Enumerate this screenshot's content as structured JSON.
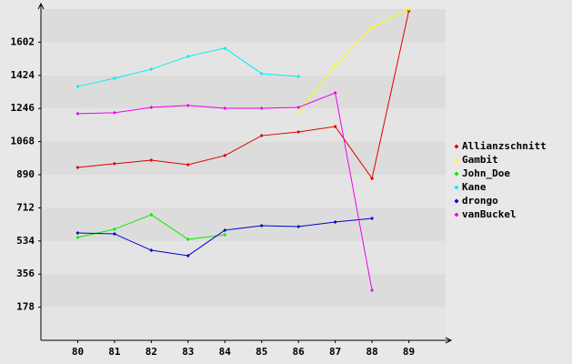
{
  "chart_data": {
    "type": "line",
    "categories": [
      "80",
      "81",
      "82",
      "83",
      "84",
      "85",
      "86",
      "87",
      "88",
      "89"
    ],
    "series": [
      {
        "name": "Allianzschnitt",
        "color": "#dd0000",
        "values": [
          929,
          949,
          968,
          944,
          993,
          1100,
          1120,
          1149,
          870,
          1770
        ]
      },
      {
        "name": "Gambit",
        "color": "#ffff00",
        "values": [
          null,
          null,
          null,
          null,
          null,
          null,
          1227,
          1477,
          1682,
          1780
        ]
      },
      {
        "name": "John_Doe",
        "color": "#00ee00",
        "values": [
          553,
          597,
          675,
          543,
          567,
          null,
          null,
          null,
          null,
          null
        ]
      },
      {
        "name": "Kane",
        "color": "#00eeee",
        "values": [
          1364,
          1408,
          1457,
          1526,
          1570,
          1433,
          1418,
          null,
          null,
          null
        ]
      },
      {
        "name": "drongo",
        "color": "#0000cc",
        "values": [
          577,
          572,
          484,
          455,
          592,
          616,
          611,
          636,
          655,
          null
        ]
      },
      {
        "name": "vanBuckel",
        "color": "#ee00ee",
        "values": [
          1218,
          1223,
          1252,
          1262,
          1247,
          1247,
          1252,
          1330,
          269,
          null
        ]
      }
    ],
    "ylim": [
      0,
      1780
    ],
    "yticks": [
      178,
      356,
      534,
      712,
      890,
      1068,
      1246,
      1424,
      1602
    ],
    "grid": true,
    "legend": "right"
  }
}
